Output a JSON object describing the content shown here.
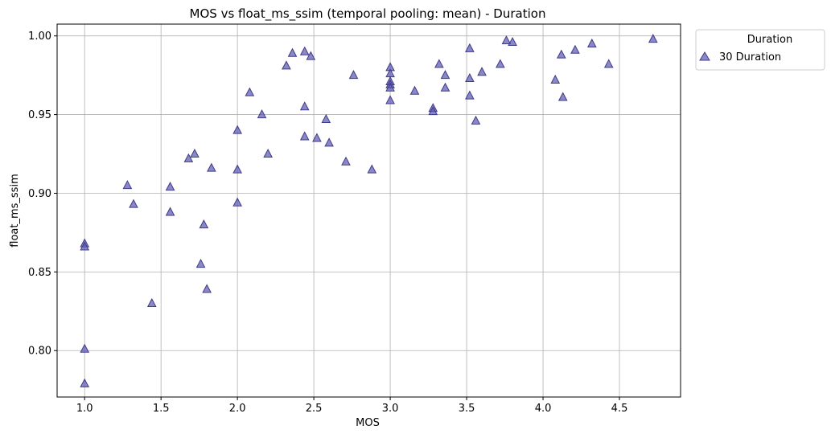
{
  "chart_data": {
    "type": "scatter",
    "title": "MOS vs float_ms_ssim (temporal pooling: mean) - Duration",
    "xlabel": "MOS",
    "ylabel": "float_ms_ssim",
    "xlim": [
      0.82,
      4.9
    ],
    "ylim": [
      0.7705,
      1.0075
    ],
    "xticks": [
      1.0,
      1.5,
      2.0,
      2.5,
      3.0,
      3.5,
      4.0,
      4.5
    ],
    "xtick_labels": [
      "1.0",
      "1.5",
      "2.0",
      "2.5",
      "3.0",
      "3.5",
      "4.0",
      "4.5"
    ],
    "yticks": [
      0.8,
      0.85,
      0.9,
      0.95,
      1.0
    ],
    "ytick_labels": [
      "0.80",
      "0.85",
      "0.90",
      "0.95",
      "1.00"
    ],
    "grid": true,
    "marker": "triangle",
    "color": "#5a55b0",
    "legend": {
      "title": "Duration",
      "placement": "outside-top-right"
    },
    "series": [
      {
        "name": "30 Duration",
        "points": [
          [
            1.0,
            0.868
          ],
          [
            1.0,
            0.866
          ],
          [
            1.0,
            0.801
          ],
          [
            1.0,
            0.779
          ],
          [
            1.28,
            0.905
          ],
          [
            1.32,
            0.893
          ],
          [
            1.44,
            0.83
          ],
          [
            1.56,
            0.904
          ],
          [
            1.56,
            0.888
          ],
          [
            1.68,
            0.922
          ],
          [
            1.72,
            0.925
          ],
          [
            1.76,
            0.855
          ],
          [
            1.78,
            0.88
          ],
          [
            1.8,
            0.839
          ],
          [
            1.83,
            0.916
          ],
          [
            2.0,
            0.94
          ],
          [
            2.0,
            0.915
          ],
          [
            2.0,
            0.894
          ],
          [
            2.08,
            0.964
          ],
          [
            2.16,
            0.95
          ],
          [
            2.2,
            0.925
          ],
          [
            2.32,
            0.981
          ],
          [
            2.36,
            0.989
          ],
          [
            2.44,
            0.99
          ],
          [
            2.44,
            0.955
          ],
          [
            2.44,
            0.936
          ],
          [
            2.48,
            0.987
          ],
          [
            2.52,
            0.935
          ],
          [
            2.58,
            0.947
          ],
          [
            2.6,
            0.932
          ],
          [
            2.71,
            0.92
          ],
          [
            2.76,
            0.975
          ],
          [
            2.88,
            0.915
          ],
          [
            3.0,
            0.98
          ],
          [
            3.0,
            0.976
          ],
          [
            3.0,
            0.971
          ],
          [
            3.0,
            0.969
          ],
          [
            3.0,
            0.967
          ],
          [
            3.0,
            0.959
          ],
          [
            3.16,
            0.965
          ],
          [
            3.28,
            0.954
          ],
          [
            3.28,
            0.952
          ],
          [
            3.32,
            0.982
          ],
          [
            3.36,
            0.975
          ],
          [
            3.36,
            0.967
          ],
          [
            3.52,
            0.992
          ],
          [
            3.52,
            0.973
          ],
          [
            3.52,
            0.962
          ],
          [
            3.56,
            0.946
          ],
          [
            3.6,
            0.977
          ],
          [
            3.72,
            0.982
          ],
          [
            3.76,
            0.997
          ],
          [
            3.8,
            0.996
          ],
          [
            4.08,
            0.972
          ],
          [
            4.12,
            0.988
          ],
          [
            4.13,
            0.961
          ],
          [
            4.21,
            0.991
          ],
          [
            4.32,
            0.995
          ],
          [
            4.43,
            0.982
          ],
          [
            4.72,
            0.998
          ]
        ]
      }
    ]
  }
}
